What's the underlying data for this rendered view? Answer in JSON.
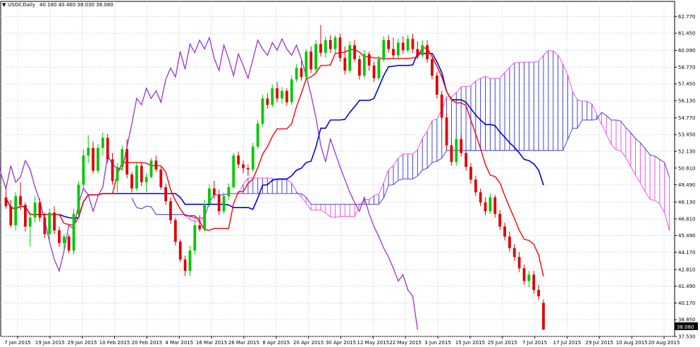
{
  "chart_data": {
    "type": "candlestick",
    "title": "USOil,Daily",
    "ohlc_header": "40.180 40.460 38.030 38.080",
    "last_price_label": "38.080",
    "grid": true,
    "ylim": [
      37.53,
      63.4
    ],
    "y_ticks": [
      "62.770",
      "61.450",
      "60.090",
      "58.770",
      "57.450",
      "56.130",
      "54.770",
      "53.450",
      "52.130",
      "50.810",
      "49.490",
      "48.130",
      "46.810",
      "45.490",
      "44.170",
      "42.810",
      "41.490",
      "40.170",
      "38.850",
      "37.530"
    ],
    "x_ticks": [
      "7 Jan 2015",
      "19 Jan 2015",
      "29 Jan 2015",
      "10 Feb 2015",
      "20 Feb 2015",
      "4 Mar 2015",
      "16 Mar 2015",
      "26 Mar 2015",
      "8 Apr 2015",
      "20 Apr 2015",
      "30 Apr 2015",
      "12 May 2015",
      "22 May 2015",
      "3 Jun 2015",
      "15 Jun 2015",
      "25 Jun 2015",
      "7 Jul 2015",
      "17 Jul 2015",
      "29 Jul 2015",
      "10 Aug 2015",
      "20 Aug 2015"
    ],
    "colors": {
      "bull": "#00c800",
      "bear": "#e00000",
      "tenkan": "#ff0000",
      "kijun": "#0000e0",
      "chikou": "#9933cc",
      "span_a": "#ee55ee",
      "span_b": "#4444dd",
      "grid": "#b8c8d8",
      "frame": "#000000"
    },
    "candles": [
      [
        48.5,
        49.3,
        47.6,
        47.8
      ],
      [
        47.8,
        48.3,
        46.1,
        46.3
      ],
      [
        46.3,
        48.9,
        45.9,
        48.6
      ],
      [
        48.6,
        49.7,
        47.5,
        47.9
      ],
      [
        47.9,
        48.1,
        45.8,
        46.2
      ],
      [
        46.2,
        47.3,
        44.6,
        46.9
      ],
      [
        46.9,
        48.6,
        46.5,
        48.1
      ],
      [
        48.1,
        48.4,
        46.6,
        46.9
      ],
      [
        46.9,
        47.3,
        45.3,
        45.6
      ],
      [
        45.6,
        47.6,
        45.2,
        47.3
      ],
      [
        47.3,
        47.8,
        45.6,
        45.9
      ],
      [
        45.9,
        46.2,
        44.6,
        44.9
      ],
      [
        44.9,
        45.6,
        44.3,
        45.4
      ],
      [
        45.4,
        45.6,
        44.1,
        44.3
      ],
      [
        44.3,
        47.6,
        44.0,
        47.2
      ],
      [
        47.2,
        49.8,
        47.0,
        49.5
      ],
      [
        49.5,
        52.3,
        49.2,
        51.8
      ],
      [
        51.8,
        53.4,
        51.2,
        52.4
      ],
      [
        52.4,
        52.9,
        50.4,
        50.6
      ],
      [
        50.6,
        52.7,
        50.4,
        52.4
      ],
      [
        52.4,
        53.6,
        51.8,
        53.2
      ],
      [
        53.2,
        53.5,
        51.2,
        51.5
      ],
      [
        51.5,
        52.0,
        49.5,
        49.8
      ],
      [
        49.8,
        51.2,
        48.9,
        50.9
      ],
      [
        50.9,
        52.6,
        50.6,
        52.3
      ],
      [
        52.3,
        53.1,
        50.0,
        50.3
      ],
      [
        50.3,
        50.5,
        48.9,
        49.2
      ],
      [
        49.2,
        51.3,
        49.0,
        51.0
      ],
      [
        51.0,
        51.2,
        49.4,
        49.7
      ],
      [
        49.7,
        50.4,
        48.9,
        50.1
      ],
      [
        50.1,
        51.6,
        50.0,
        51.4
      ],
      [
        51.4,
        51.8,
        50.5,
        50.7
      ],
      [
        50.7,
        50.9,
        49.1,
        49.3
      ],
      [
        49.3,
        49.6,
        47.9,
        48.2
      ],
      [
        48.2,
        48.5,
        46.4,
        46.7
      ],
      [
        46.7,
        46.9,
        44.7,
        45.0
      ],
      [
        45.0,
        45.2,
        43.4,
        43.6
      ],
      [
        43.6,
        43.9,
        42.3,
        42.7
      ],
      [
        42.7,
        44.7,
        42.3,
        44.3
      ],
      [
        44.3,
        46.6,
        44.0,
        46.3
      ],
      [
        46.3,
        47.1,
        45.8,
        46.0
      ],
      [
        46.0,
        48.3,
        45.8,
        48.0
      ],
      [
        48.0,
        49.5,
        47.7,
        49.2
      ],
      [
        49.2,
        49.8,
        48.4,
        48.7
      ],
      [
        48.7,
        49.1,
        47.1,
        47.4
      ],
      [
        47.4,
        48.9,
        47.2,
        48.6
      ],
      [
        48.6,
        49.6,
        48.3,
        49.3
      ],
      [
        49.3,
        52.0,
        49.2,
        51.8
      ],
      [
        51.8,
        52.1,
        50.8,
        51.1
      ],
      [
        51.1,
        51.4,
        50.4,
        50.8
      ],
      [
        50.8,
        51.1,
        50.2,
        50.7
      ],
      [
        50.7,
        52.8,
        50.5,
        52.5
      ],
      [
        52.5,
        54.6,
        52.3,
        54.3
      ],
      [
        54.3,
        56.6,
        54.1,
        56.3
      ],
      [
        56.3,
        56.7,
        55.5,
        55.8
      ],
      [
        55.8,
        57.4,
        55.6,
        57.1
      ],
      [
        57.1,
        57.6,
        56.0,
        56.3
      ],
      [
        56.3,
        57.2,
        55.9,
        56.9
      ],
      [
        56.9,
        57.1,
        55.7,
        56.0
      ],
      [
        56.0,
        58.1,
        55.8,
        57.8
      ],
      [
        57.8,
        59.0,
        57.6,
        58.7
      ],
      [
        58.7,
        59.3,
        57.7,
        58.0
      ],
      [
        58.0,
        60.2,
        57.8,
        60.0
      ],
      [
        60.0,
        60.4,
        58.3,
        58.6
      ],
      [
        58.6,
        60.9,
        58.4,
        60.6
      ],
      [
        60.6,
        62.1,
        59.6,
        59.9
      ],
      [
        59.9,
        61.2,
        59.5,
        60.9
      ],
      [
        60.9,
        61.3,
        59.9,
        60.2
      ],
      [
        60.2,
        61.3,
        59.9,
        61.1
      ],
      [
        61.1,
        61.4,
        59.2,
        59.5
      ],
      [
        59.5,
        60.4,
        58.2,
        58.5
      ],
      [
        58.5,
        60.8,
        58.3,
        60.5
      ],
      [
        60.5,
        60.9,
        59.2,
        59.4
      ],
      [
        59.4,
        59.7,
        57.8,
        58.1
      ],
      [
        58.1,
        60.1,
        57.9,
        59.8
      ],
      [
        59.8,
        60.0,
        58.5,
        58.9
      ],
      [
        58.9,
        59.2,
        57.6,
        57.9
      ],
      [
        57.9,
        59.7,
        57.7,
        59.4
      ],
      [
        59.4,
        61.2,
        59.2,
        60.9
      ],
      [
        60.9,
        61.3,
        59.9,
        60.2
      ],
      [
        60.2,
        61.1,
        59.4,
        59.7
      ],
      [
        59.7,
        61.0,
        59.5,
        60.7
      ],
      [
        60.7,
        61.2,
        59.8,
        60.1
      ],
      [
        60.1,
        61.3,
        59.9,
        61.0
      ],
      [
        61.0,
        61.4,
        59.9,
        60.2
      ],
      [
        60.2,
        60.8,
        59.4,
        59.7
      ],
      [
        59.7,
        60.9,
        59.5,
        60.5
      ],
      [
        60.5,
        60.9,
        59.1,
        59.4
      ],
      [
        59.4,
        59.6,
        57.8,
        58.1
      ],
      [
        58.1,
        58.4,
        56.3,
        56.6
      ],
      [
        56.6,
        56.9,
        54.6,
        54.8
      ],
      [
        54.8,
        55.1,
        52.3,
        52.6
      ],
      [
        52.6,
        53.2,
        51.0,
        51.3
      ],
      [
        51.3,
        53.4,
        51.0,
        53.1
      ],
      [
        53.1,
        53.4,
        51.7,
        52.0
      ],
      [
        52.0,
        52.2,
        50.6,
        50.9
      ],
      [
        50.9,
        51.2,
        49.6,
        49.9
      ],
      [
        49.9,
        50.2,
        48.6,
        48.9
      ],
      [
        48.9,
        49.2,
        47.8,
        48.1
      ],
      [
        48.1,
        48.5,
        47.1,
        47.4
      ],
      [
        47.4,
        48.8,
        47.2,
        48.5
      ],
      [
        48.5,
        48.7,
        46.9,
        47.2
      ],
      [
        47.2,
        47.5,
        45.9,
        46.2
      ],
      [
        46.2,
        46.5,
        45.1,
        45.4
      ],
      [
        45.4,
        45.8,
        44.2,
        44.5
      ],
      [
        44.5,
        44.8,
        43.5,
        43.8
      ],
      [
        43.8,
        44.2,
        42.6,
        42.9
      ],
      [
        42.9,
        43.2,
        41.6,
        41.9
      ],
      [
        41.9,
        42.7,
        41.4,
        42.4
      ],
      [
        42.4,
        42.7,
        40.9,
        41.2
      ],
      [
        41.2,
        41.6,
        40.4,
        40.7
      ],
      [
        40.18,
        40.46,
        38.03,
        38.08
      ]
    ]
  }
}
